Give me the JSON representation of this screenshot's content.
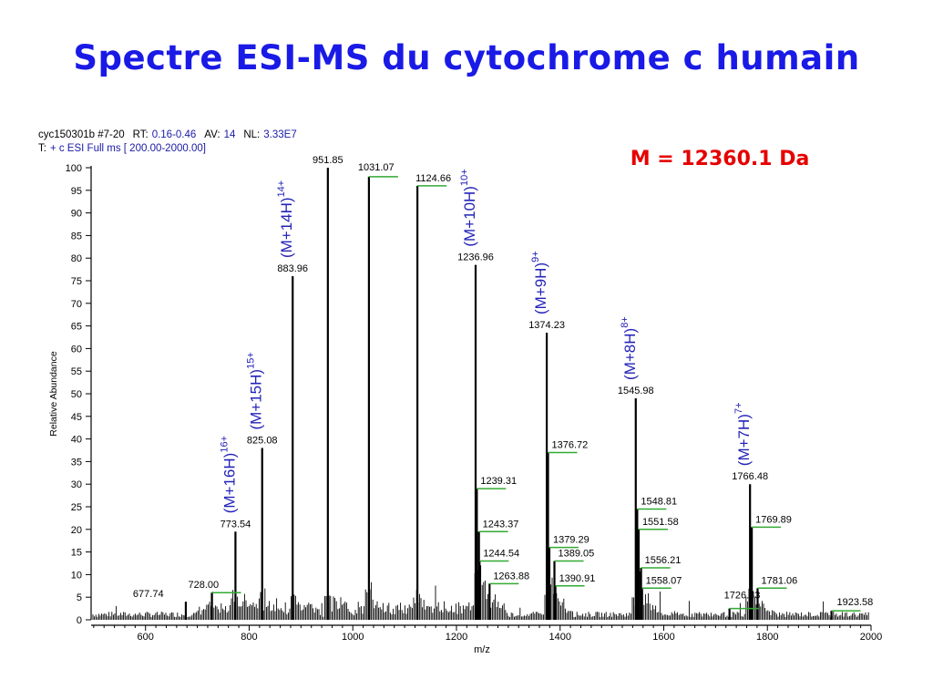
{
  "title": "Spectre ESI-MS du cytochrome c humain",
  "header": {
    "line1": [
      {
        "text": "cyc150301b #7-20",
        "color": "#000000"
      },
      {
        "text": "RT:",
        "color": "#000000"
      },
      {
        "text": "0.16-0.46",
        "color": "#1a1aa6"
      },
      {
        "text": "AV:",
        "color": "#000000"
      },
      {
        "text": "14",
        "color": "#1a1aa6"
      },
      {
        "text": "NL:",
        "color": "#000000"
      },
      {
        "text": "3.33E7",
        "color": "#1a1aa6"
      }
    ],
    "line2": [
      {
        "text": "T:",
        "color": "#000000"
      },
      {
        "text": "+ c ESI Full ms [ 200.00-2000.00]",
        "color": "#1a1aa6"
      }
    ]
  },
  "mass_label": "M = 12360.1 Da",
  "colors": {
    "title": "#1a1ae6",
    "mass": "#e60000",
    "ion": "#2323b8",
    "marker": "#33aa33",
    "bars": "#000000"
  },
  "chart_data": {
    "type": "bar",
    "xlabel": "m/z",
    "ylabel": "Relative Abundance",
    "xlim": [
      495,
      2000
    ],
    "ylim": [
      0,
      100
    ],
    "xticks": [
      600,
      800,
      1000,
      1200,
      1400,
      1600,
      1800,
      2000
    ],
    "yticks": [
      0,
      5,
      10,
      15,
      20,
      25,
      30,
      35,
      40,
      45,
      50,
      55,
      60,
      65,
      70,
      75,
      80,
      85,
      90,
      95,
      100
    ],
    "peaks": [
      {
        "x": 677.74,
        "y": 4,
        "label": "677.74"
      },
      {
        "x": 728.0,
        "y": 6,
        "label": "728.00"
      },
      {
        "x": 773.54,
        "y": 19.5,
        "label": "773.54"
      },
      {
        "x": 825.08,
        "y": 38,
        "label": "825.08"
      },
      {
        "x": 883.96,
        "y": 76,
        "label": "883.96"
      },
      {
        "x": 951.85,
        "y": 100,
        "label": "951.85"
      },
      {
        "x": 1031.07,
        "y": 98,
        "label": "1031.07"
      },
      {
        "x": 1124.66,
        "y": 96,
        "label": "1124.66"
      },
      {
        "x": 1236.96,
        "y": 78.5,
        "label": "1236.96"
      },
      {
        "x": 1239.31,
        "y": 29,
        "label": "1239.31"
      },
      {
        "x": 1243.37,
        "y": 19.5,
        "label": "1243.37"
      },
      {
        "x": 1244.54,
        "y": 13,
        "label": "1244.54"
      },
      {
        "x": 1263.88,
        "y": 8,
        "label": "1263.88"
      },
      {
        "x": 1374.23,
        "y": 63.5,
        "label": "1374.23"
      },
      {
        "x": 1376.72,
        "y": 37,
        "label": "1376.72"
      },
      {
        "x": 1379.29,
        "y": 16,
        "label": "1379.29"
      },
      {
        "x": 1389.05,
        "y": 13,
        "label": "1389.05"
      },
      {
        "x": 1390.91,
        "y": 7.5,
        "label": "1390.91"
      },
      {
        "x": 1545.98,
        "y": 49,
        "label": "1545.98"
      },
      {
        "x": 1548.81,
        "y": 24.5,
        "label": "1548.81"
      },
      {
        "x": 1551.58,
        "y": 20,
        "label": "1551.58"
      },
      {
        "x": 1556.21,
        "y": 11.5,
        "label": "1556.21"
      },
      {
        "x": 1558.07,
        "y": 7,
        "label": "1558.07"
      },
      {
        "x": 1726.83,
        "y": 2.5,
        "label": "1726.83"
      },
      {
        "x": 1766.48,
        "y": 30,
        "label": "1766.48"
      },
      {
        "x": 1769.89,
        "y": 20.5,
        "label": "1769.89"
      },
      {
        "x": 1781.06,
        "y": 7,
        "label": "1781.06"
      },
      {
        "x": 1923.58,
        "y": 2,
        "label": "1923.58"
      }
    ],
    "charge_states": [
      {
        "label": "(M+16H)",
        "charge": "16+",
        "x": 773.54
      },
      {
        "label": "(M+15H)",
        "charge": "15+",
        "x": 825.08
      },
      {
        "label": "(M+14H)",
        "charge": "14+",
        "x": 883.96
      },
      {
        "label": "(M+10H)",
        "charge": "10+",
        "x": 1236.96
      },
      {
        "label": "(M+9H)",
        "charge": "9+",
        "x": 1374.23
      },
      {
        "label": "(M+8H)",
        "charge": "8+",
        "x": 1545.98
      },
      {
        "label": "(M+7H)",
        "charge": "7+",
        "x": 1766.48
      }
    ]
  }
}
